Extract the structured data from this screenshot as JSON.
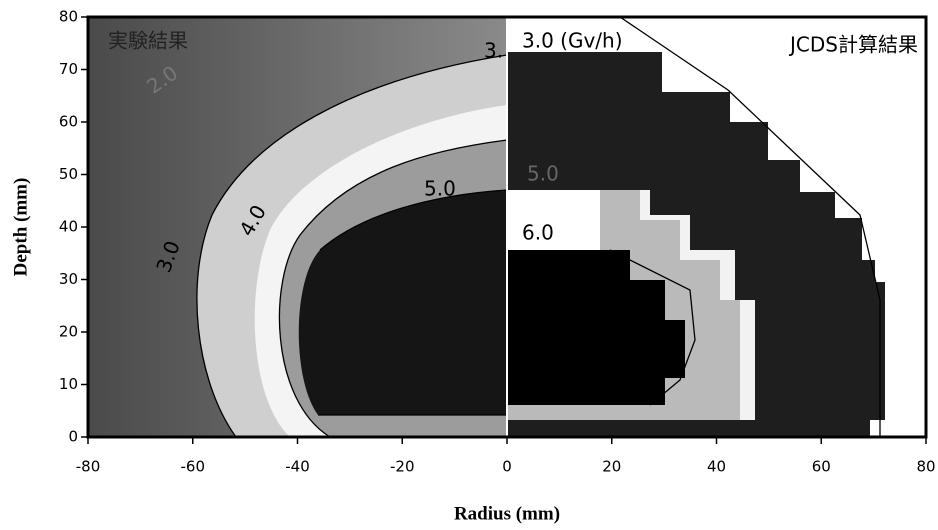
{
  "chart_data": {
    "type": "contour",
    "x_label": "Radius (mm)",
    "y_label": "Depth (mm)",
    "xlim": [
      -80,
      80
    ],
    "ylim": [
      0,
      80
    ],
    "xticks": [
      -80,
      -60,
      -40,
      -20,
      0,
      20,
      40,
      60,
      80
    ],
    "yticks": [
      0,
      10,
      20,
      30,
      40,
      50,
      60,
      70,
      80
    ],
    "annotations": [
      "実験結果",
      "JCDS計算結果",
      "3.0 (Gv/h)",
      "2.0",
      "3.",
      "3.0",
      "4.0",
      "5.0",
      "6.0",
      "5.0"
    ]
  }
}
